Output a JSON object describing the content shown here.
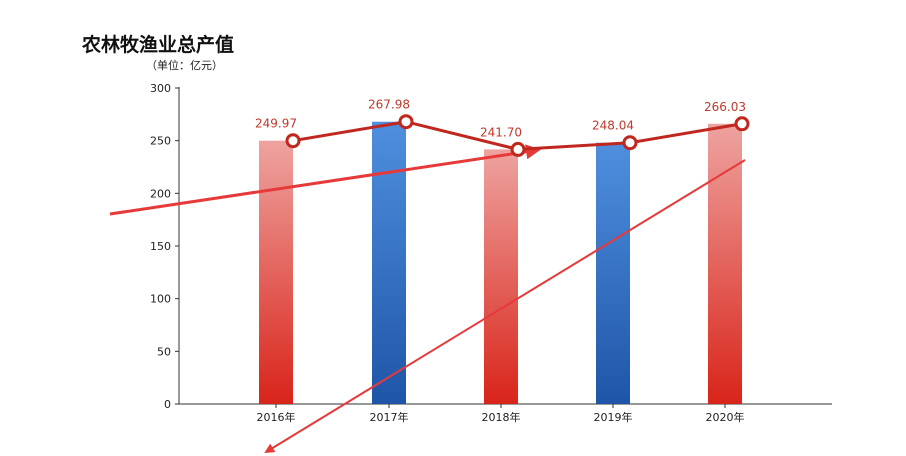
{
  "chart_data": {
    "type": "bar",
    "title": "农林牧渔业总产值",
    "unit_label": "（单位：亿元）",
    "categories": [
      "2016年",
      "2017年",
      "2018年",
      "2019年",
      "2020年"
    ],
    "values": [
      249.97,
      267.98,
      241.7,
      248.04,
      266.03
    ],
    "value_labels": [
      "249.97",
      "267.98",
      "241.70",
      "248.04",
      "266.03"
    ],
    "ylim": [
      0,
      300
    ],
    "yticks": [
      "0",
      "50",
      "100",
      "150",
      "200",
      "250",
      "300"
    ],
    "overlay": "line",
    "bar_colors": [
      "red-gradient",
      "blue-gradient",
      "red-gradient",
      "blue-gradient",
      "red-gradient"
    ],
    "line_color": "#c0271e",
    "grid": false
  }
}
